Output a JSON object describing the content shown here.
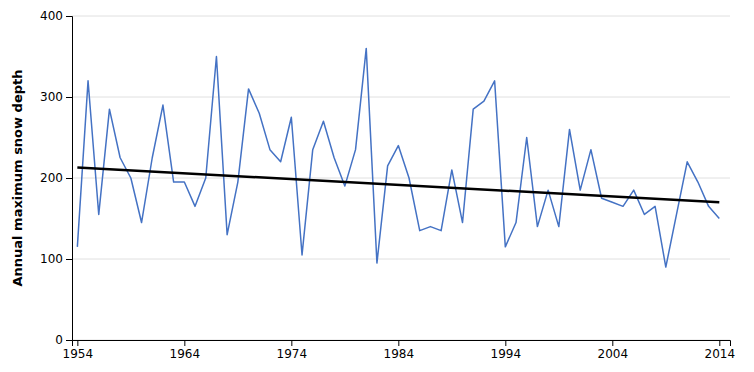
{
  "chart_data": {
    "type": "line",
    "ylabel": "Annual maximum snow depth",
    "x": [
      1954,
      1955,
      1956,
      1957,
      1958,
      1959,
      1960,
      1961,
      1962,
      1963,
      1964,
      1965,
      1966,
      1967,
      1968,
      1969,
      1970,
      1971,
      1972,
      1973,
      1974,
      1975,
      1976,
      1977,
      1978,
      1979,
      1980,
      1981,
      1982,
      1983,
      1984,
      1985,
      1986,
      1987,
      1988,
      1989,
      1990,
      1991,
      1992,
      1993,
      1994,
      1995,
      1996,
      1997,
      1998,
      1999,
      2000,
      2001,
      2002,
      2003,
      2004,
      2005,
      2006,
      2007,
      2008,
      2009,
      2010,
      2011,
      2012,
      2013,
      2014
    ],
    "series": [
      {
        "color": "#4472C4",
        "values": [
          115,
          320,
          155,
          285,
          225,
          200,
          145,
          225,
          290,
          195,
          195,
          165,
          200,
          350,
          130,
          195,
          310,
          280,
          235,
          220,
          275,
          105,
          235,
          270,
          225,
          190,
          235,
          360,
          95,
          215,
          240,
          200,
          135,
          140,
          135,
          210,
          145,
          285,
          295,
          320,
          115,
          145,
          250,
          140,
          185,
          140,
          260,
          185,
          235,
          175,
          170,
          165,
          185,
          155,
          165,
          90,
          155,
          220,
          195,
          165,
          150
        ]
      },
      {
        "color": "#000000",
        "x": [
          1954,
          2014
        ],
        "values": [
          213,
          170
        ]
      }
    ],
    "xlim": [
      1953.5,
      2015
    ],
    "ylim": [
      0,
      400
    ],
    "xticks": [
      1954,
      1964,
      1974,
      1984,
      1994,
      2004,
      2014
    ],
    "yticks": [
      0,
      100,
      200,
      300,
      400
    ],
    "grid": true
  }
}
